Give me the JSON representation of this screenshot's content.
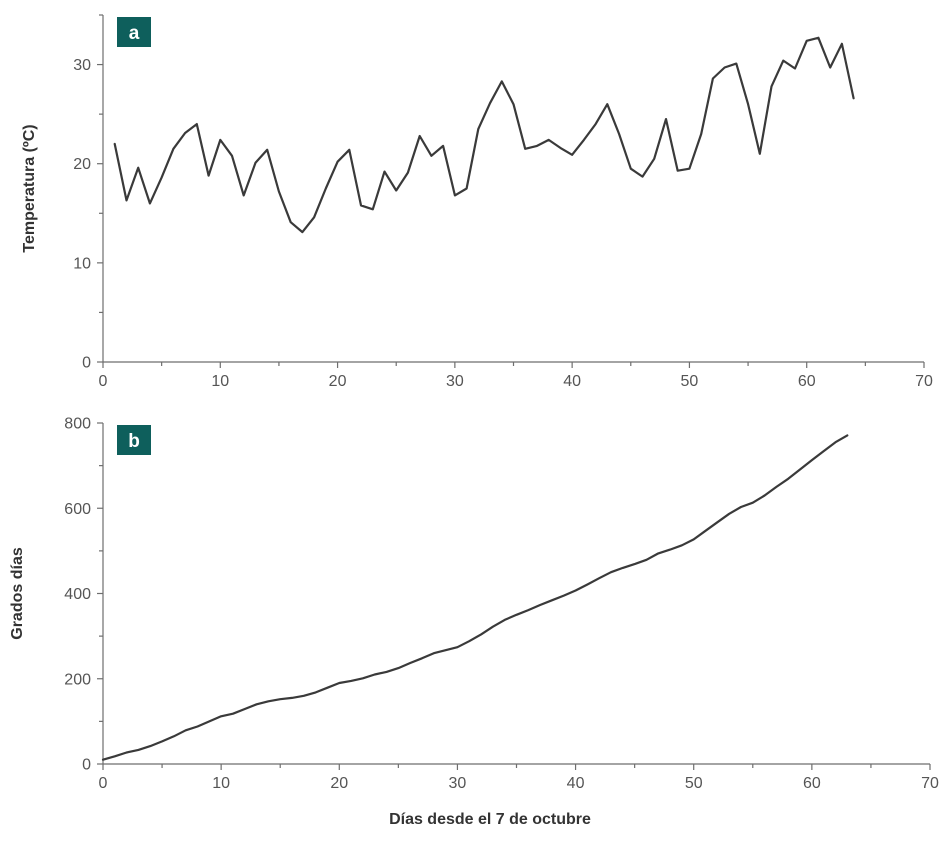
{
  "xlabel": "Días desde el 7 de octubre",
  "colors": {
    "line": "#3a3a3a",
    "axis": "#6e6e6e",
    "panel_badge": "#0e5f5c"
  },
  "chart_data": [
    {
      "type": "line",
      "panel_label": "a",
      "ylabel": "Temperatura (ºC)",
      "xlim": [
        0,
        70
      ],
      "ylim": [
        0,
        35
      ],
      "xticks": [
        0,
        10,
        20,
        30,
        40,
        50,
        60,
        70
      ],
      "yticks": [
        0,
        10,
        20,
        30
      ],
      "grid": false,
      "series": [
        {
          "x": [
            1,
            2,
            3,
            4,
            5,
            6,
            7,
            8,
            9,
            10,
            11,
            12,
            13,
            14,
            15,
            16,
            17,
            18,
            19,
            20,
            21,
            22,
            23,
            24,
            25,
            26,
            27,
            28,
            29,
            30,
            31,
            32,
            33,
            34,
            35,
            36,
            37,
            38,
            39,
            40,
            41,
            42,
            43,
            44,
            45,
            46,
            47,
            48,
            49,
            50,
            51,
            52,
            53,
            54,
            55,
            56,
            57,
            58,
            59,
            60,
            61,
            62,
            63,
            64
          ],
          "y": [
            22,
            16.3,
            19.6,
            16,
            18.6,
            21.5,
            23.1,
            24,
            18.8,
            22.4,
            20.8,
            16.8,
            20.1,
            21.4,
            17.2,
            14.1,
            13.1,
            14.6,
            17.5,
            20.2,
            21.4,
            15.8,
            15.4,
            19.2,
            17.3,
            19.1,
            22.8,
            20.8,
            21.8,
            16.8,
            17.5,
            23.5,
            26.1,
            28.3,
            26,
            21.5,
            21.8,
            22.4,
            21.6,
            20.9,
            22.4,
            24,
            26,
            23,
            19.5,
            18.7,
            20.5,
            24.5,
            19.3,
            19.5,
            23,
            28.6,
            29.7,
            30.1,
            26,
            21,
            27.8,
            30.4,
            29.6,
            32.4,
            32.7,
            29.7,
            32.1,
            26.6
          ]
        }
      ]
    },
    {
      "type": "line",
      "panel_label": "b",
      "ylabel": "Grados días",
      "xlim": [
        0,
        70
      ],
      "ylim": [
        0,
        800
      ],
      "xticks": [
        0,
        10,
        20,
        30,
        40,
        50,
        60,
        70
      ],
      "yticks": [
        0,
        200,
        400,
        600,
        800
      ],
      "grid": false,
      "series": [
        {
          "x": [
            0,
            1,
            2,
            3,
            4,
            5,
            6,
            7,
            8,
            9,
            10,
            11,
            12,
            13,
            14,
            15,
            16,
            17,
            18,
            19,
            20,
            21,
            22,
            23,
            24,
            25,
            26,
            27,
            28,
            29,
            30,
            31,
            32,
            33,
            34,
            35,
            36,
            37,
            38,
            39,
            40,
            41,
            42,
            43,
            44,
            45,
            46,
            47,
            48,
            49,
            50,
            51,
            52,
            53,
            54,
            55,
            56,
            57,
            58,
            59,
            60,
            61,
            62,
            63
          ],
          "y": [
            10,
            18,
            27,
            33,
            42,
            53,
            65,
            79,
            88,
            100,
            112,
            118,
            129,
            140,
            147,
            152,
            155,
            160,
            168,
            179,
            190,
            195,
            201,
            210,
            216,
            225,
            237,
            248,
            260,
            267,
            274,
            288,
            304,
            322,
            338,
            350,
            361,
            373,
            384,
            395,
            407,
            421,
            436,
            450,
            460,
            469,
            479,
            494,
            503,
            513,
            527,
            547,
            567,
            587,
            603,
            613,
            630,
            650,
            669,
            691,
            713,
            734,
            755,
            771
          ]
        }
      ]
    }
  ]
}
